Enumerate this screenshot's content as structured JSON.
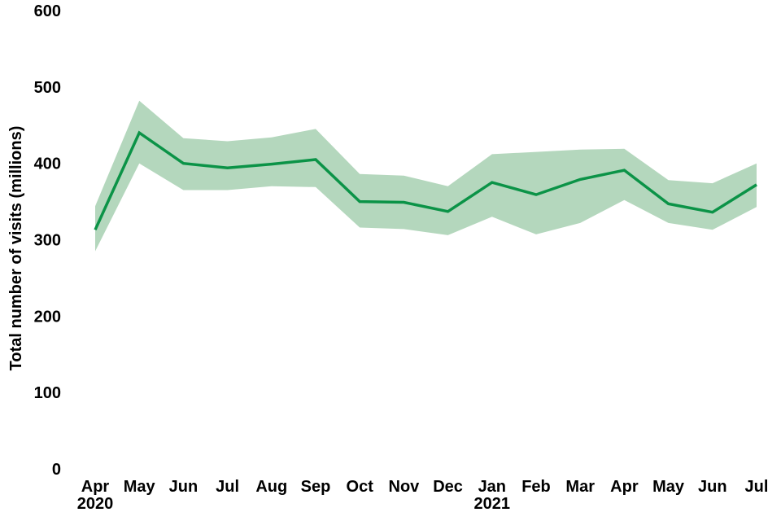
{
  "chart_data": {
    "type": "line",
    "title": "",
    "xlabel": "",
    "ylabel": "Total number of visits (millions)",
    "ylim": [
      0,
      600
    ],
    "yticks": [
      0,
      100,
      200,
      300,
      400,
      500,
      600
    ],
    "grid": false,
    "legend_position": "none",
    "x_ticks": [
      {
        "label": "Apr",
        "year": "2020"
      },
      {
        "label": "May"
      },
      {
        "label": "Jun"
      },
      {
        "label": "Jul"
      },
      {
        "label": "Aug"
      },
      {
        "label": "Sep"
      },
      {
        "label": "Oct"
      },
      {
        "label": "Nov"
      },
      {
        "label": "Dec"
      },
      {
        "label": "Jan",
        "year": "2021"
      },
      {
        "label": "Feb"
      },
      {
        "label": "Mar"
      },
      {
        "label": "Apr"
      },
      {
        "label": "May"
      },
      {
        "label": "Jun"
      },
      {
        "label": "Jul"
      }
    ],
    "series": [
      {
        "name": "Total number of visits (millions)",
        "values": [
          313,
          440,
          400,
          394,
          399,
          405,
          350,
          349,
          337,
          375,
          359,
          379,
          391,
          347,
          336,
          372
        ]
      }
    ],
    "band": {
      "name": "confidence-interval",
      "lower": [
        285,
        400,
        365,
        365,
        370,
        369,
        316,
        314,
        306,
        330,
        307,
        322,
        352,
        322,
        313,
        343
      ],
      "upper": [
        344,
        482,
        433,
        429,
        434,
        445,
        386,
        384,
        370,
        412,
        415,
        418,
        419,
        378,
        374,
        400
      ]
    },
    "colors": {
      "line": "#0B9347",
      "band": "#B4D7BD",
      "text": "#000000",
      "background": "#FFFFFF"
    }
  }
}
